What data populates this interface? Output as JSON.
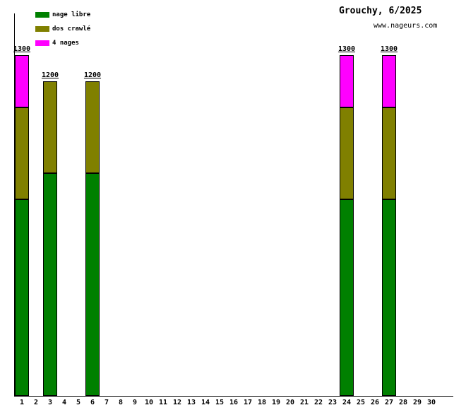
{
  "title": "Grouchy, 6/2025",
  "site": "www.nageurs.com",
  "legend": [
    {
      "label": "nage libre",
      "color": "#008000"
    },
    {
      "label": "dos crawlé",
      "color": "#808000"
    },
    {
      "label": "4 nages",
      "color": "#ff00ff"
    }
  ],
  "chart_data": {
    "type": "bar",
    "stacked": true,
    "title": "Grouchy, 6/2025",
    "xlabel": "",
    "ylabel": "",
    "ylim": [
      0,
      1460
    ],
    "grid": false,
    "legend_position": "top-left",
    "x_labels": [
      "1",
      "2",
      "3",
      "4",
      "5",
      "6",
      "7",
      "8",
      "9",
      "10",
      "11",
      "12",
      "13",
      "14",
      "15",
      "16",
      "17",
      "18",
      "19",
      "20",
      "21",
      "22",
      "23",
      "24",
      "25",
      "26",
      "27",
      "28",
      "29",
      "30"
    ],
    "series_order": [
      "nage libre",
      "dos crawlé",
      "4 nages"
    ],
    "bars": [
      {
        "day": 1,
        "total": 1300,
        "segments": [
          {
            "series": "nage libre",
            "value": 750
          },
          {
            "series": "dos crawlé",
            "value": 350
          },
          {
            "series": "4 nages",
            "value": 200
          }
        ]
      },
      {
        "day": 3,
        "total": 1200,
        "segments": [
          {
            "series": "nage libre",
            "value": 850
          },
          {
            "series": "dos crawlé",
            "value": 350
          }
        ]
      },
      {
        "day": 6,
        "total": 1200,
        "segments": [
          {
            "series": "nage libre",
            "value": 850
          },
          {
            "series": "dos crawlé",
            "value": 350
          }
        ]
      },
      {
        "day": 24,
        "total": 1300,
        "segments": [
          {
            "series": "nage libre",
            "value": 750
          },
          {
            "series": "dos crawlé",
            "value": 350
          },
          {
            "series": "4 nages",
            "value": 200
          }
        ]
      },
      {
        "day": 27,
        "total": 1300,
        "segments": [
          {
            "series": "nage libre",
            "value": 750
          },
          {
            "series": "dos crawlé",
            "value": 350
          },
          {
            "series": "4 nages",
            "value": 200
          }
        ]
      }
    ]
  }
}
